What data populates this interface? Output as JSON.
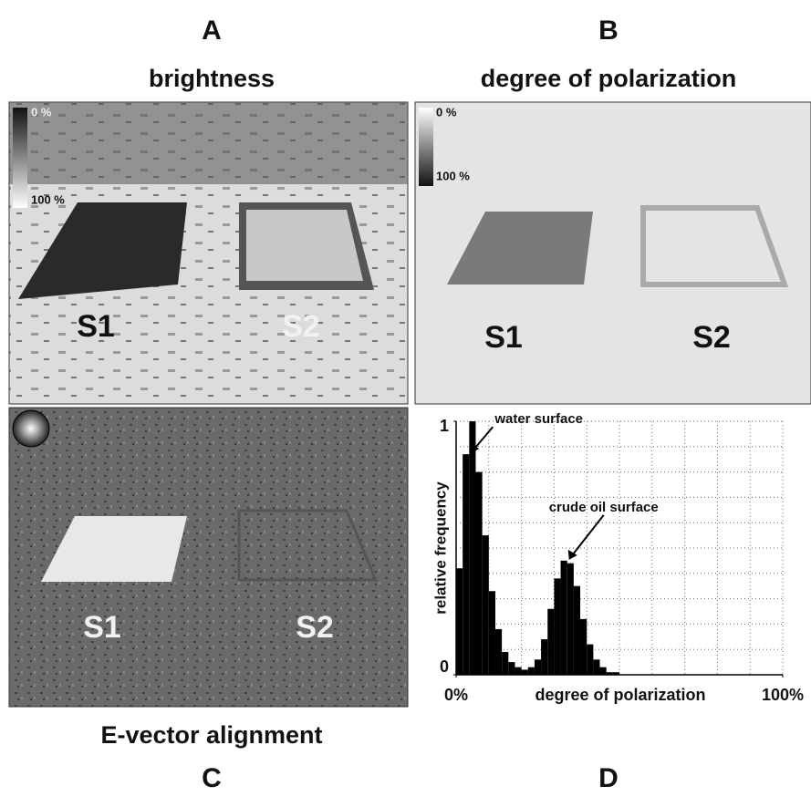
{
  "panels": {
    "a": {
      "letter": "A",
      "title": "brightness",
      "scale_top": "0 %",
      "scale_bottom": "100 %",
      "label_1": "S1",
      "label_2": "S2"
    },
    "b": {
      "letter": "B",
      "title": "degree of polarization",
      "scale_top": "0 %",
      "scale_bottom": "100 %",
      "label_1": "S1",
      "label_2": "S2"
    },
    "c": {
      "letter": "C",
      "title": "E-vector alignment",
      "label_1": "S1",
      "label_2": "S2"
    },
    "d": {
      "letter": "D"
    }
  },
  "chart_data": {
    "type": "histogram",
    "xlabel": "degree of polarization",
    "ylabel": "relative frequency",
    "bins": [
      0,
      2,
      4,
      6,
      8,
      10,
      12,
      14,
      16,
      18,
      20,
      22,
      24,
      26,
      28,
      30,
      32,
      34,
      36,
      38,
      40,
      42,
      44,
      46,
      48,
      50
    ],
    "values": [
      0.42,
      0.87,
      1.0,
      0.8,
      0.55,
      0.33,
      0.18,
      0.09,
      0.05,
      0.03,
      0.02,
      0.03,
      0.06,
      0.14,
      0.26,
      0.38,
      0.45,
      0.44,
      0.35,
      0.22,
      0.12,
      0.06,
      0.03,
      0.01,
      0.01
    ],
    "color": "#000000",
    "xlim": [
      0,
      100
    ],
    "ylim": [
      0,
      1
    ],
    "xticks": [
      {
        "value": 0,
        "label": "0%"
      },
      {
        "value": 100,
        "label": "100%"
      }
    ],
    "yticks": [
      0,
      1
    ],
    "xgrid": [
      10,
      20,
      30,
      40,
      50,
      60,
      70,
      80,
      90,
      100
    ],
    "ygrid": [
      0.1,
      0.2,
      0.3,
      0.4,
      0.5,
      0.6,
      0.7,
      0.8,
      0.9,
      1
    ],
    "grid": true,
    "annotations": [
      {
        "text": "water surface",
        "x": 4,
        "y": 0.87
      },
      {
        "text": "crude oil surface",
        "x": 34,
        "y": 0.45
      }
    ]
  }
}
